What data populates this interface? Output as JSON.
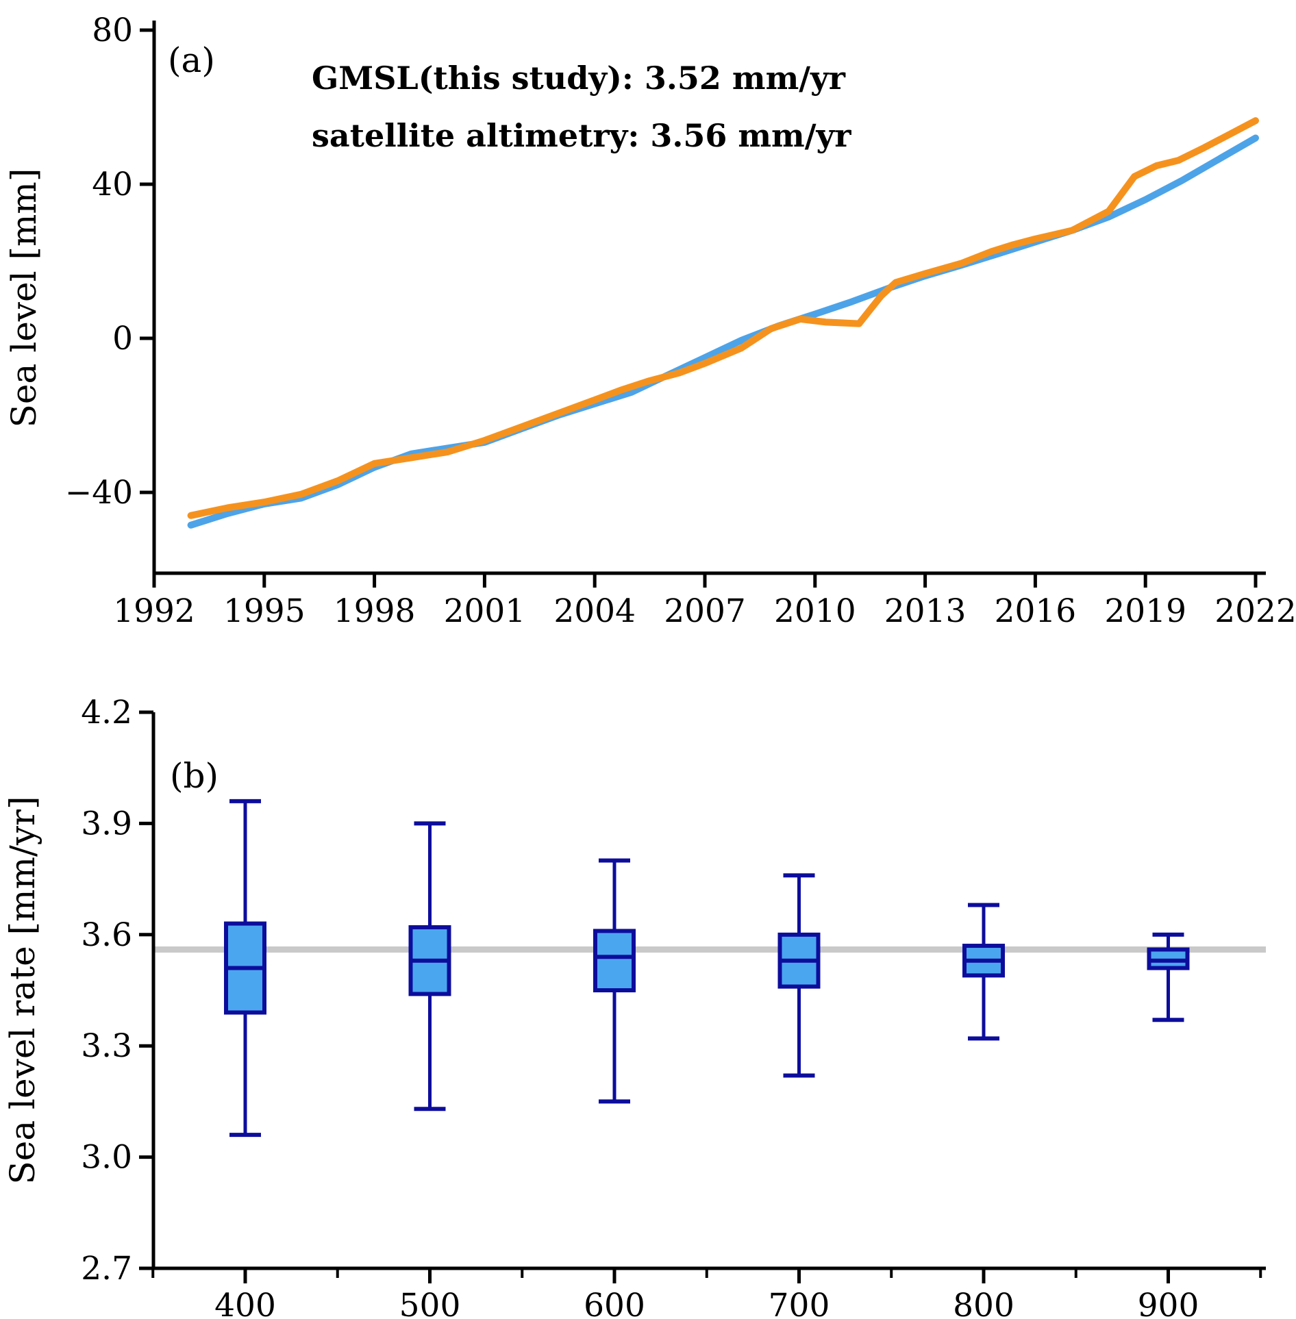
{
  "figure": {
    "description": "Two-panel sea level figure",
    "background": "#ffffff",
    "axis_color": "#000000"
  },
  "chart_data": [
    {
      "id": "a",
      "type": "line",
      "panel_label": "(a)",
      "ylabel": "Sea level [mm]",
      "xlim": [
        1992,
        2022.4
      ],
      "ylim": [
        -61,
        82.5
      ],
      "grid": false,
      "legend_position": "upper left, as colored text",
      "legend": [
        {
          "label": "GMSL(this study): 3.52 mm/yr",
          "color": "#4DA3E8"
        },
        {
          "label": "satellite altimetry: 3.56 mm/yr",
          "color": "#F5921E"
        }
      ],
      "xticks": [
        {
          "v": 1992,
          "label": "1992"
        },
        {
          "v": 1995,
          "label": "1995"
        },
        {
          "v": 1998,
          "label": "1998"
        },
        {
          "v": 2001,
          "label": "2001"
        },
        {
          "v": 2004,
          "label": "2004"
        },
        {
          "v": 2007,
          "label": "2007"
        },
        {
          "v": 2010,
          "label": "2010"
        },
        {
          "v": 2013,
          "label": "2013"
        },
        {
          "v": 2016,
          "label": "2016"
        },
        {
          "v": 2019,
          "label": "2019"
        },
        {
          "v": 2022,
          "label": "2022"
        }
      ],
      "yticks": [
        {
          "v": 80,
          "label": "80"
        },
        {
          "v": 40,
          "label": "40"
        },
        {
          "v": 0,
          "label": "0"
        },
        {
          "v": -40,
          "label": "−40"
        }
      ],
      "series": [
        {
          "name": "GMSL (this study)",
          "rate_mm_per_yr": 3.52,
          "color": "#4DA3E8",
          "points": [
            [
              1993,
              -48.5
            ],
            [
              1994,
              -45.5
            ],
            [
              1995,
              -43.0
            ],
            [
              1996,
              -41.5
            ],
            [
              1997,
              -38.0
            ],
            [
              1998,
              -33.5
            ],
            [
              1999,
              -30.0
            ],
            [
              2000,
              -28.5
            ],
            [
              2001,
              -27.0
            ],
            [
              2002,
              -23.5
            ],
            [
              2003,
              -20.0
            ],
            [
              2004,
              -17.0
            ],
            [
              2005,
              -14.0
            ],
            [
              2006,
              -9.5
            ],
            [
              2007,
              -5.0
            ],
            [
              2008,
              -0.5
            ],
            [
              2009,
              3.2
            ],
            [
              2010,
              6.3
            ],
            [
              2011,
              9.5
            ],
            [
              2012,
              13.0
            ],
            [
              2013,
              16.2
            ],
            [
              2014,
              19.0
            ],
            [
              2015,
              22.0
            ],
            [
              2016,
              25.0
            ],
            [
              2017,
              28.0
            ],
            [
              2018,
              31.5
            ],
            [
              2019,
              36.0
            ],
            [
              2020,
              41.0
            ],
            [
              2021,
              46.5
            ],
            [
              2022,
              52.0
            ]
          ]
        },
        {
          "name": "satellite altimetry",
          "rate_mm_per_yr": 3.56,
          "color": "#F5921E",
          "points": [
            [
              1993,
              -46.0
            ],
            [
              1994,
              -44.0
            ],
            [
              1995,
              -42.5
            ],
            [
              1996,
              -40.5
            ],
            [
              1997,
              -37.0
            ],
            [
              1998,
              -32.5
            ],
            [
              1999,
              -31.0
            ],
            [
              2000,
              -29.5
            ],
            [
              2001,
              -26.5
            ],
            [
              2002,
              -23.0
            ],
            [
              2003,
              -19.5
            ],
            [
              2004,
              -16.0
            ],
            [
              2004.7,
              -13.5
            ],
            [
              2005.5,
              -11.0
            ],
            [
              2006.3,
              -9.0
            ],
            [
              2007,
              -6.5
            ],
            [
              2008,
              -2.5
            ],
            [
              2008.8,
              2.5
            ],
            [
              2009.6,
              5.0
            ],
            [
              2010.3,
              4.2
            ],
            [
              2011.2,
              3.8
            ],
            [
              2011.8,
              11.0
            ],
            [
              2012.2,
              14.5
            ],
            [
              2013,
              16.8
            ],
            [
              2014,
              19.5
            ],
            [
              2014.8,
              22.5
            ],
            [
              2015.4,
              24.3
            ],
            [
              2016,
              25.8
            ],
            [
              2017,
              28.0
            ],
            [
              2018,
              33.0
            ],
            [
              2018.7,
              42.0
            ],
            [
              2019.3,
              44.8
            ],
            [
              2019.9,
              46.2
            ],
            [
              2020.6,
              49.5
            ],
            [
              2021.3,
              53.0
            ],
            [
              2022,
              56.5
            ]
          ]
        }
      ]
    },
    {
      "id": "b",
      "type": "box",
      "panel_label": "(b)",
      "ylabel": "Sea level rate [mm/yr]",
      "xlim": [
        350,
        953
      ],
      "ylim": [
        2.7,
        4.2
      ],
      "grid": false,
      "reference_line": {
        "value": 3.56,
        "color": "#C9C9C9",
        "meaning": "satellite altimetry rate"
      },
      "box_style": {
        "fill": "#4BA6F0",
        "edge": "#0D0D9C"
      },
      "xticks": [
        {
          "v": 400,
          "label": "400"
        },
        {
          "v": 500,
          "label": "500"
        },
        {
          "v": 600,
          "label": "600"
        },
        {
          "v": 700,
          "label": "700"
        },
        {
          "v": 800,
          "label": "800"
        },
        {
          "v": 900,
          "label": "900"
        }
      ],
      "minor_xticks": [
        350,
        450,
        550,
        650,
        750,
        850,
        950
      ],
      "yticks": [
        {
          "v": 4.2,
          "label": "4.2"
        },
        {
          "v": 3.9,
          "label": "3.9"
        },
        {
          "v": 3.6,
          "label": "3.6"
        },
        {
          "v": 3.3,
          "label": "3.3"
        },
        {
          "v": 3.0,
          "label": "3.0"
        },
        {
          "v": 2.7,
          "label": "2.7"
        }
      ],
      "boxes": [
        {
          "x": 400,
          "whisker_low": 3.06,
          "q1": 3.39,
          "median": 3.51,
          "q3": 3.63,
          "whisker_high": 3.96
        },
        {
          "x": 500,
          "whisker_low": 3.13,
          "q1": 3.44,
          "median": 3.53,
          "q3": 3.62,
          "whisker_high": 3.9
        },
        {
          "x": 600,
          "whisker_low": 3.15,
          "q1": 3.45,
          "median": 3.54,
          "q3": 3.61,
          "whisker_high": 3.8
        },
        {
          "x": 700,
          "whisker_low": 3.22,
          "q1": 3.46,
          "median": 3.53,
          "q3": 3.6,
          "whisker_high": 3.76
        },
        {
          "x": 800,
          "whisker_low": 3.32,
          "q1": 3.49,
          "median": 3.53,
          "q3": 3.57,
          "whisker_high": 3.68
        },
        {
          "x": 900,
          "whisker_low": 3.37,
          "q1": 3.51,
          "median": 3.53,
          "q3": 3.56,
          "whisker_high": 3.6
        }
      ]
    }
  ]
}
